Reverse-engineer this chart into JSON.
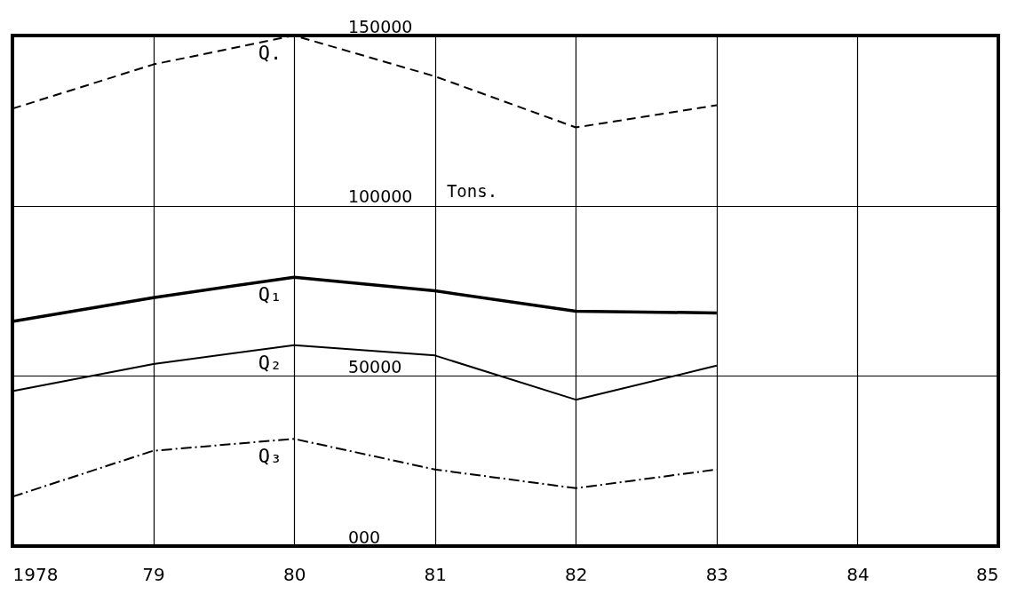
{
  "chart_data": {
    "type": "line",
    "ylabel": "Tons.",
    "x": [
      1978,
      1979,
      1980,
      1981,
      1982,
      1983
    ],
    "series": [
      {
        "name": "Q.",
        "color": "#000000",
        "line_style": "dashed",
        "values": [
          128500,
          141500,
          150000,
          138000,
          123000,
          129500
        ]
      },
      {
        "name": "Q₁",
        "color": "#000000",
        "line_style": "solid",
        "values": [
          66000,
          73000,
          79000,
          75000,
          69000,
          68500
        ]
      },
      {
        "name": "Q₂",
        "color": "#000000",
        "line_style": "solid",
        "values": [
          45500,
          53500,
          59000,
          56000,
          43000,
          53000
        ]
      },
      {
        "name": "Q₃",
        "color": "#000000",
        "line_style": "dashdot",
        "values": [
          14500,
          28000,
          31500,
          22500,
          17000,
          22500
        ]
      }
    ],
    "xlim": [
      1978,
      1985
    ],
    "xticks": [
      {
        "value": 1978,
        "label": "1978"
      },
      {
        "value": 1979,
        "label": "79"
      },
      {
        "value": 1980,
        "label": "80"
      },
      {
        "value": 1981,
        "label": "81"
      },
      {
        "value": 1982,
        "label": "82"
      },
      {
        "value": 1983,
        "label": "83"
      },
      {
        "value": 1984,
        "label": "84"
      },
      {
        "value": 1985,
        "label": "85"
      }
    ],
    "ylim": [
      0,
      150000
    ],
    "yticks": [
      {
        "value": 0,
        "label": "000"
      },
      50000,
      100000,
      150000
    ],
    "grid": true,
    "legend": false,
    "marker": "none"
  }
}
